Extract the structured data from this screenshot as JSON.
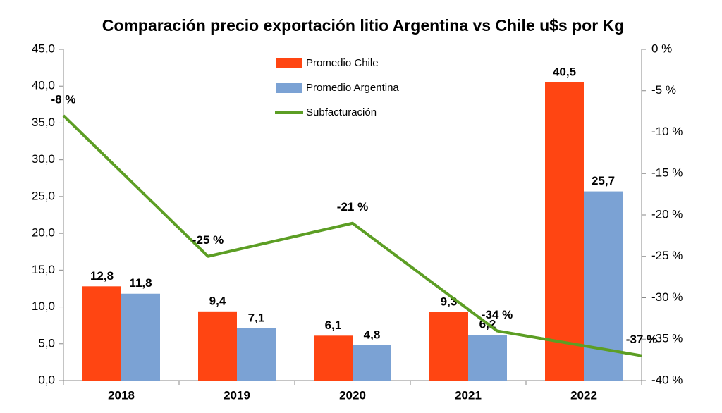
{
  "chart_data": {
    "type": "bar",
    "title": "Comparación precio exportación litio Argentina vs Chile u$s por Kg",
    "categories": [
      "2018",
      "2019",
      "2020",
      "2021",
      "2022"
    ],
    "series": [
      {
        "name": "Promedio Chile",
        "color": "#ff4512",
        "values": [
          12.8,
          9.4,
          6.1,
          9.3,
          40.5
        ],
        "value_labels": [
          "12,8",
          "9,4",
          "6,1",
          "9,3",
          "40,5"
        ]
      },
      {
        "name": "Promedio Argentina",
        "color": "#7ba2d4",
        "values": [
          11.8,
          7.1,
          4.8,
          6.2,
          25.7
        ],
        "value_labels": [
          "11,8",
          "7,1",
          "4,8",
          "6,2",
          "25,7"
        ]
      },
      {
        "name": "Subfacturación",
        "color": "#5c9e24",
        "type": "line",
        "axis": "y2",
        "values": [
          -8,
          -25,
          -21,
          -34,
          -37
        ],
        "value_labels": [
          "-8 %",
          "-25 %",
          "-21 %",
          "-34 %",
          "-37 %"
        ]
      }
    ],
    "ylim": [
      0,
      45
    ],
    "yticks": [
      {
        "value": 0,
        "label": "0,0"
      },
      {
        "value": 5,
        "label": "5,0"
      },
      {
        "value": 10,
        "label": "10,0"
      },
      {
        "value": 15,
        "label": "15,0"
      },
      {
        "value": 20,
        "label": "20,0"
      },
      {
        "value": 25,
        "label": "25,0"
      },
      {
        "value": 30,
        "label": "30,0"
      },
      {
        "value": 35,
        "label": "35,0"
      },
      {
        "value": 40,
        "label": "40,0"
      },
      {
        "value": 45,
        "label": "45,0"
      }
    ],
    "y2lim": [
      -40,
      0
    ],
    "y2ticks": [
      {
        "value": -40,
        "label": "-40 %"
      },
      {
        "value": -35,
        "label": "-35 %"
      },
      {
        "value": -30,
        "label": "-30 %"
      },
      {
        "value": -25,
        "label": "-25 %"
      },
      {
        "value": -20,
        "label": "-20 %"
      },
      {
        "value": -15,
        "label": "-15 %"
      },
      {
        "value": -10,
        "label": "-10 %"
      },
      {
        "value": -5,
        "label": "-5 %"
      },
      {
        "value": 0,
        "label": "0 %"
      }
    ],
    "grid": false
  }
}
